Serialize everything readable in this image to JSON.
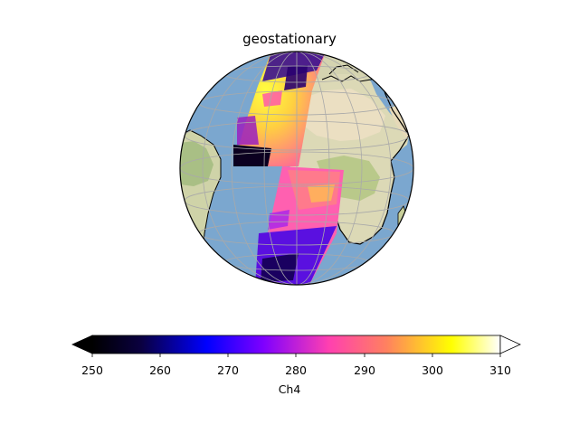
{
  "title": "geostationary",
  "colorbar": {
    "label": "Ch4",
    "ticks": [
      "250",
      "260",
      "270",
      "280",
      "290",
      "300",
      "310"
    ],
    "range": [
      250,
      310
    ],
    "extend": "both",
    "colormap": "gnuplot2",
    "stops": [
      "#000000",
      "#0000ff",
      "#7f00ff",
      "#ff55aa",
      "#ffff00",
      "#ffffff"
    ]
  },
  "map": {
    "projection": "orthographic",
    "gridlines": true,
    "coastlines": true,
    "colors": {
      "ocean": "#7ba7cf",
      "land": "#dcd9b6",
      "land_green": "#b9c98a",
      "desert": "#ebdfc2",
      "grid": "#a9a9a9",
      "coast": "#000000"
    }
  }
}
